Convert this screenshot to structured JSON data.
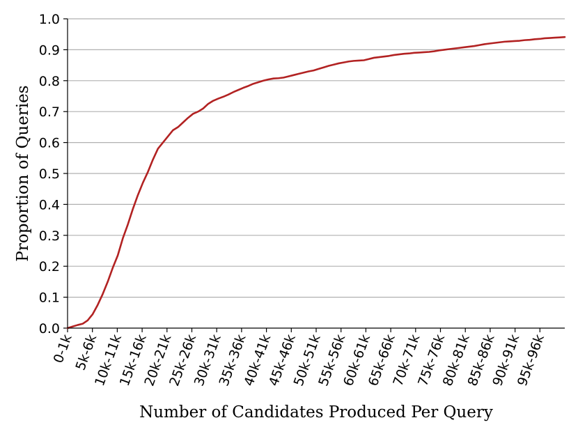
{
  "chart_data": {
    "type": "line",
    "title": "",
    "xlabel": "Number of Candidates Produced Per Query",
    "ylabel": "Proportion of Queries",
    "ylim": [
      0.0,
      1.0
    ],
    "yticks": [
      "0.0",
      "0.1",
      "0.2",
      "0.3",
      "0.4",
      "0.5",
      "0.6",
      "0.7",
      "0.8",
      "0.9",
      "1.0"
    ],
    "grid": "horizontal",
    "legend": "none",
    "line_color": "#b22222",
    "grid_color": "#b0b0b0",
    "xticks": [
      "0-1k",
      "5k-6k",
      "10k-11k",
      "15k-16k",
      "20k-21k",
      "25k-26k",
      "30k-31k",
      "35k-36k",
      "40k-41k",
      "45k-46k",
      "50k-51k",
      "55k-56k",
      "60k-61k",
      "65k-66k",
      "70k-71k",
      "75k-76k",
      "80k-81k",
      "85k-86k",
      "90k-91k",
      "95k-96k"
    ],
    "series": [
      {
        "values": [
          0.0,
          0.005,
          0.01,
          0.014,
          0.025,
          0.045,
          0.075,
          0.11,
          0.15,
          0.195,
          0.235,
          0.29,
          0.335,
          0.385,
          0.43,
          0.47,
          0.505,
          0.545,
          0.58,
          0.6,
          0.62,
          0.64,
          0.65,
          0.665,
          0.68,
          0.693,
          0.7,
          0.71,
          0.725,
          0.735,
          0.742,
          0.748,
          0.755,
          0.763,
          0.77,
          0.777,
          0.783,
          0.79,
          0.795,
          0.8,
          0.804,
          0.807,
          0.808,
          0.81,
          0.814,
          0.818,
          0.822,
          0.826,
          0.83,
          0.833,
          0.838,
          0.843,
          0.848,
          0.852,
          0.856,
          0.859,
          0.862,
          0.864,
          0.865,
          0.866,
          0.87,
          0.874,
          0.876,
          0.878,
          0.88,
          0.883,
          0.885,
          0.887,
          0.888,
          0.89,
          0.891,
          0.892,
          0.893,
          0.895,
          0.898,
          0.9,
          0.902,
          0.904,
          0.906,
          0.908,
          0.91,
          0.912,
          0.915,
          0.918,
          0.92,
          0.922,
          0.924,
          0.926,
          0.927,
          0.928,
          0.929,
          0.931,
          0.932,
          0.934,
          0.935,
          0.937,
          0.938,
          0.939,
          0.94,
          0.941
        ]
      }
    ]
  }
}
